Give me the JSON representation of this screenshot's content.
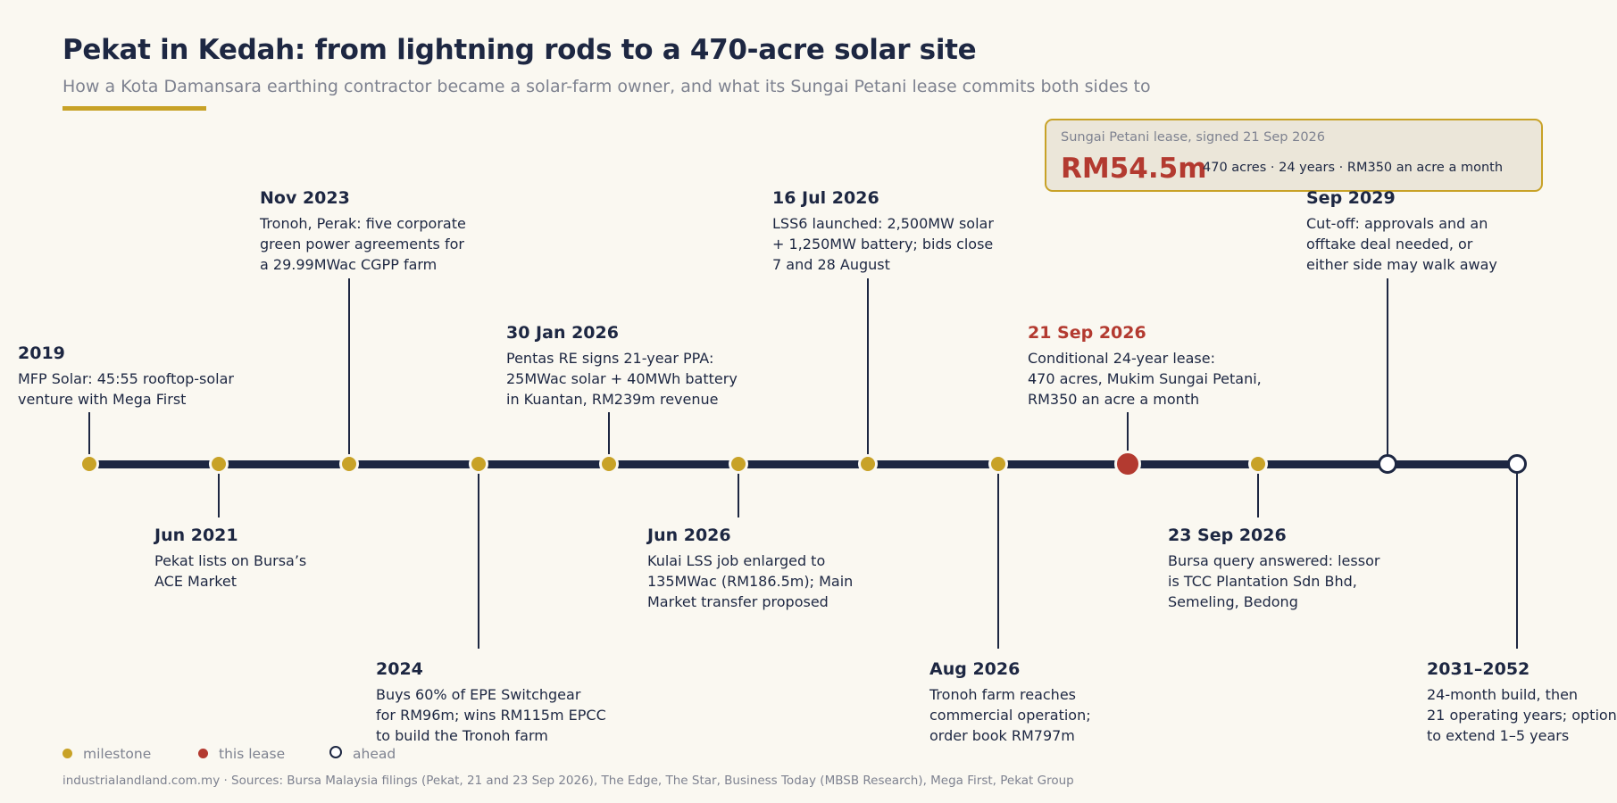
{
  "header": {
    "title": "Pekat in Kedah: from lightning rods to a 470-acre solar site",
    "subtitle": "How a Kota Damansara earthing contractor became a solar-farm owner, and what its Sungai Petani lease commits both sides to"
  },
  "callout": {
    "caption": "Sungai Petani lease, signed 21 Sep 2026",
    "value": "RM54.5m",
    "details": "470 acres  ·  24 years  ·  RM350 an acre a month"
  },
  "colors": {
    "milestone": "#c8a227",
    "lease": "#b33a30",
    "ahead": "#ffffff",
    "axis": "#1d2742"
  },
  "events": [
    {
      "date": "2019",
      "lines": [
        "MFP Solar: 45:55 rooftop-solar",
        "venture with Mega First"
      ],
      "kind": "milestone"
    },
    {
      "date": "Jun 2021",
      "lines": [
        "Pekat lists on Bursa’s",
        "ACE Market"
      ],
      "kind": "milestone"
    },
    {
      "date": "Nov 2023",
      "lines": [
        "Tronoh, Perak: five corporate",
        "green power agreements for",
        "a 29.99MWac CGPP farm"
      ],
      "kind": "milestone"
    },
    {
      "date": "2024",
      "lines": [
        "Buys 60% of EPE Switchgear",
        "for RM96m; wins RM115m EPCC",
        "to build the Tronoh farm"
      ],
      "kind": "milestone"
    },
    {
      "date": "30 Jan 2026",
      "lines": [
        "Pentas RE signs 21-year PPA:",
        "25MWac solar + 40MWh battery",
        "in Kuantan, RM239m revenue"
      ],
      "kind": "milestone"
    },
    {
      "date": "Jun 2026",
      "lines": [
        "Kulai LSS job enlarged to",
        "135MWac (RM186.5m); Main",
        "Market transfer proposed"
      ],
      "kind": "milestone"
    },
    {
      "date": "16 Jul 2026",
      "lines": [
        "LSS6 launched: 2,500MW solar",
        "+ 1,250MW battery; bids close",
        "7 and 28 August"
      ],
      "kind": "milestone"
    },
    {
      "date": "Aug 2026",
      "lines": [
        "Tronoh farm reaches",
        "commercial operation;",
        "order book RM797m"
      ],
      "kind": "milestone"
    },
    {
      "date": "21 Sep 2026",
      "lines": [
        "Conditional 24-year lease:",
        "470 acres, Mukim Sungai Petani,",
        "RM350 an acre a month"
      ],
      "kind": "lease"
    },
    {
      "date": "23 Sep 2026",
      "lines": [
        "Bursa query answered: lessor",
        "is TCC Plantation Sdn Bhd,",
        "Semeling, Bedong"
      ],
      "kind": "milestone"
    },
    {
      "date": "Sep 2029",
      "lines": [
        "Cut-off: approvals and an",
        "offtake deal needed, or",
        "either side may walk away"
      ],
      "kind": "ahead"
    },
    {
      "date": "2031–2052",
      "lines": [
        "24-month build, then",
        "21 operating years; option",
        "to extend 1–5 years"
      ],
      "kind": "ahead"
    }
  ],
  "legend": [
    {
      "label": "milestone",
      "kind": "milestone"
    },
    {
      "label": "this lease",
      "kind": "lease"
    },
    {
      "label": "ahead",
      "kind": "ahead"
    }
  ],
  "footer": {
    "text": "industrialandland.com.my  ·  Sources: Bursa Malaysia filings (Pekat, 21 and 23 Sep 2026), The Edge, The Star, Business Today (MBSB Research), Mega First, Pekat Group"
  }
}
